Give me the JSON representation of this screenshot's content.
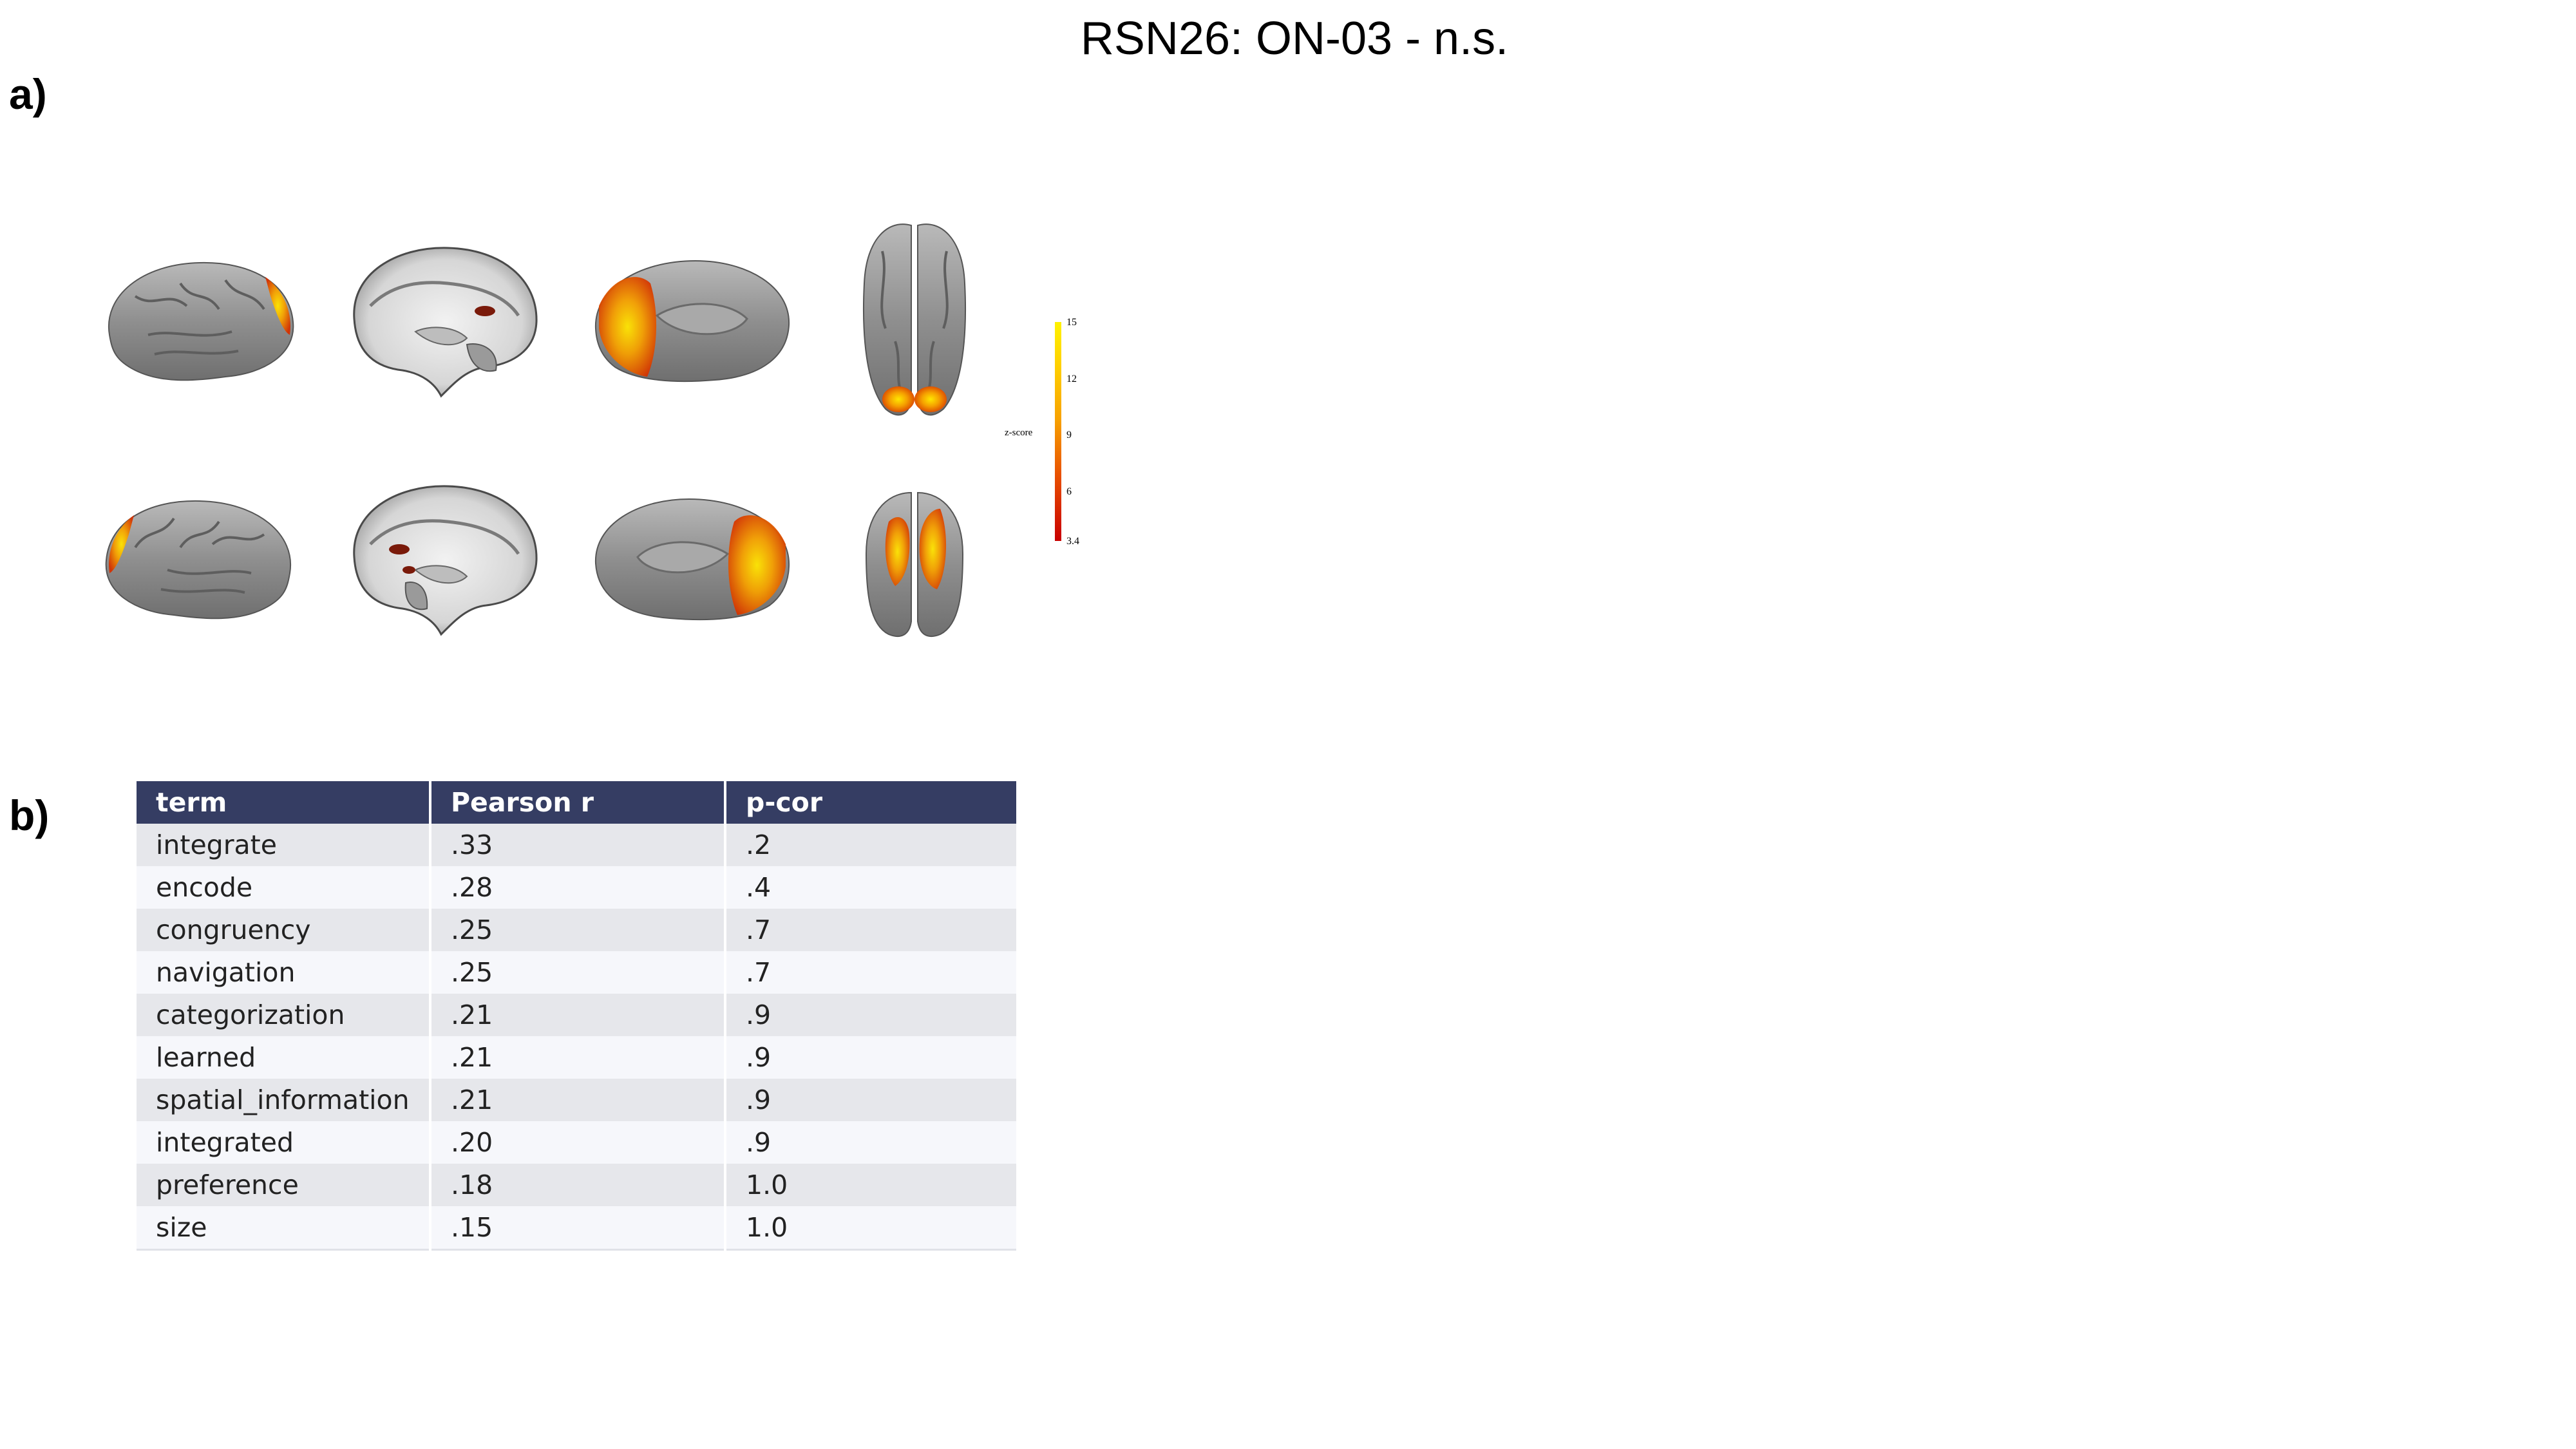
{
  "title": "RSN26: ON-03 - n.s.",
  "panels": {
    "a": "a)",
    "b": "b)"
  },
  "brain_views": [
    "lateral-left",
    "sagittal-slice-left",
    "medial-left",
    "ventral",
    "lateral-right",
    "sagittal-slice-right",
    "medial-right",
    "posterior"
  ],
  "colorbar": {
    "label": "z-score",
    "ticks": [
      "15",
      "12",
      "9",
      "6",
      "3.4"
    ],
    "colors": [
      "#fff200",
      "#f7a000",
      "#c80000"
    ]
  },
  "table": {
    "headers": [
      "term",
      "Pearson r",
      "p-cor"
    ],
    "rows": [
      [
        "integrate",
        ".33",
        ".2"
      ],
      [
        "encode",
        ".28",
        ".4"
      ],
      [
        "congruency",
        ".25",
        ".7"
      ],
      [
        "navigation",
        ".25",
        ".7"
      ],
      [
        "categorization",
        ".21",
        ".9"
      ],
      [
        "learned",
        ".21",
        ".9"
      ],
      [
        "spatial_information",
        ".21",
        ".9"
      ],
      [
        "integrated",
        ".20",
        ".9"
      ],
      [
        "preference",
        ".18",
        "1.0"
      ],
      [
        "size",
        ".15",
        "1.0"
      ]
    ],
    "header_color": "#353d63"
  }
}
